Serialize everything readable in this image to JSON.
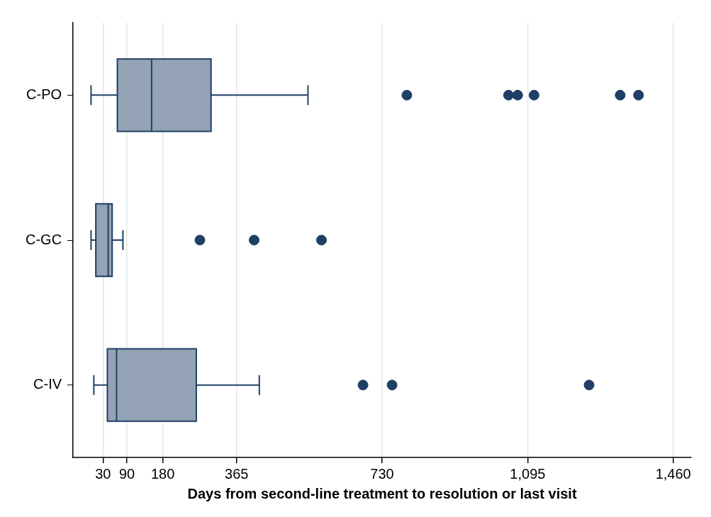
{
  "chart_data": {
    "type": "box",
    "orientation": "horizontal",
    "xlabel": "Days from second-line treatment to resolution or last visit",
    "categories": [
      "C-PO",
      "C-GC",
      "C-IV"
    ],
    "color": "#93a3b5",
    "boxes": [
      {
        "low": 0,
        "q1": 66,
        "median": 152,
        "q3": 301,
        "high": 544,
        "outliers": [
          792,
          1047,
          1070,
          1111,
          1327,
          1373
        ]
      },
      {
        "low": 0,
        "q1": 12,
        "median": 43,
        "q3": 53,
        "high": 80,
        "outliers": [
          273,
          409,
          578
        ]
      },
      {
        "low": 7,
        "q1": 41,
        "median": 64,
        "q3": 264,
        "high": 422,
        "outliers": [
          682,
          755,
          1249
        ]
      }
    ],
    "xlim": [
      -45,
      1505
    ],
    "xticks": [
      30,
      90,
      180,
      365,
      730,
      {
        "value": 1095,
        "label": "1,095"
      },
      {
        "value": 1460,
        "label": "1,460"
      }
    ],
    "grid": "x"
  }
}
